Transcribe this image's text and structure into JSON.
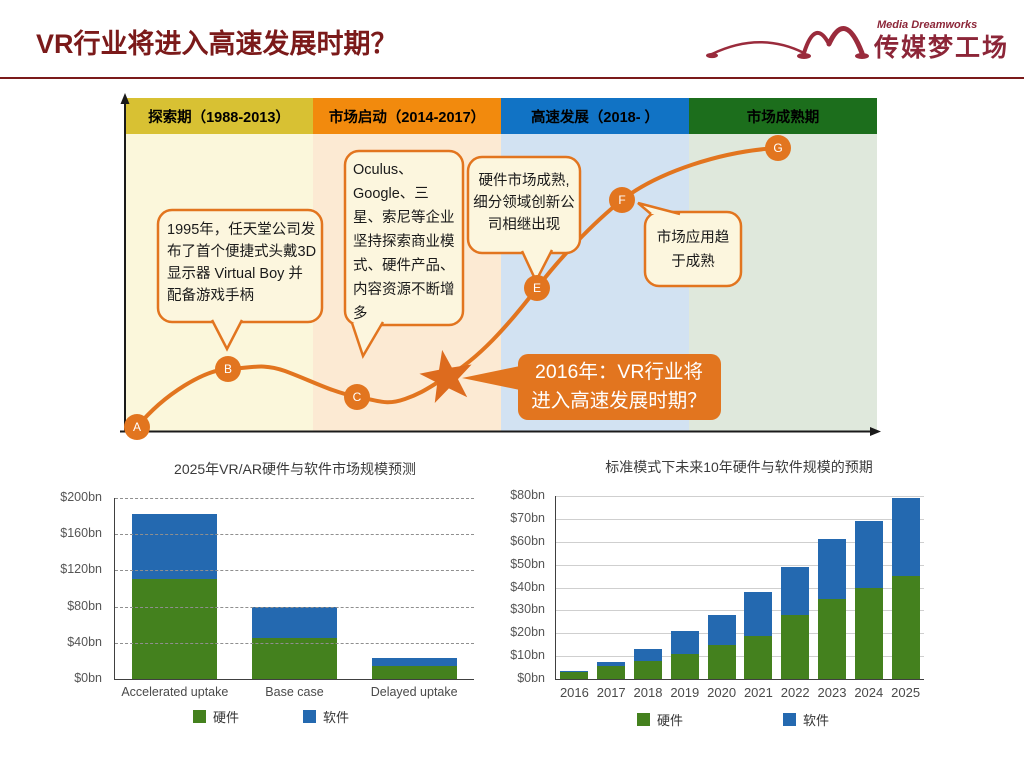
{
  "header": {
    "title": "VR行业将进入高速发展时期？",
    "accent_color": "#7B1A1A",
    "logo": {
      "name": "传媒梦工场",
      "subname": "Media Dreamworks",
      "color": "#8C2638"
    }
  },
  "timeline": {
    "curve_color": "#E2751F",
    "phases": [
      {
        "label": "探索期（1988-2013）",
        "header_color": "#D8C133",
        "column_color": "#FBF7DB"
      },
      {
        "label": "市场启动（2014-2017）",
        "header_color": "#F28A0D",
        "column_color": "#FCEAD3"
      },
      {
        "label": "高速发展（2018- ）",
        "header_color": "#1173C5",
        "column_color": "#D2E2F2"
      },
      {
        "label": "市场成熟期",
        "header_color": "#1C6E1C",
        "column_color": "#DFE8DC"
      }
    ],
    "points": [
      {
        "label": "A"
      },
      {
        "label": "B"
      },
      {
        "label": "C"
      },
      {
        "label": "E"
      },
      {
        "label": "F"
      },
      {
        "label": "G"
      }
    ],
    "callouts": [
      {
        "text": "1995年，任天堂公司发布了首个便捷式头戴3D显示器 Virtual Boy 并配备游戏手柄"
      },
      {
        "text": "Oculus、Google、三星、索尼等企业坚持探索商业模式、硬件产品、内容资源不断增多"
      },
      {
        "text": "硬件市场成熟,细分领域创新公司相继出现"
      },
      {
        "text": "市场应用趋于成熟"
      }
    ],
    "highlight": {
      "line1": "2016年：VR行业将",
      "line2": "进入高速发展时期？"
    }
  },
  "chart_data": [
    {
      "type": "bar",
      "title": "2025年VR/AR硬件与软件市场规模预测",
      "categories": [
        "Accelerated uptake",
        "Base case",
        "Delayed uptake"
      ],
      "series": [
        {
          "name": "硬件",
          "key": "hardware",
          "color": "#44811E",
          "values": [
            110,
            45,
            14
          ]
        },
        {
          "name": "软件",
          "key": "software",
          "color": "#2469B0",
          "values": [
            72,
            35,
            9
          ]
        }
      ],
      "yticks": [
        "$0bn",
        "$40bn",
        "$80bn",
        "$120bn",
        "$160bn",
        "$200bn"
      ],
      "ymax": 200,
      "ytick_step": 40,
      "grid": "dashed",
      "legend_position": "bottom"
    },
    {
      "type": "bar",
      "title": "标准模式下未来10年硬件与软件规模的预期",
      "categories": [
        "2016",
        "2017",
        "2018",
        "2019",
        "2020",
        "2021",
        "2022",
        "2023",
        "2024",
        "2025"
      ],
      "series": [
        {
          "name": "硬件",
          "key": "hardware",
          "color": "#44811E",
          "values": [
            3,
            5.5,
            8,
            11,
            15,
            19,
            28,
            35,
            40,
            45
          ]
        },
        {
          "name": "软件",
          "key": "software",
          "color": "#2469B0",
          "values": [
            0.5,
            2,
            5,
            10,
            13,
            19,
            21,
            26,
            29,
            34
          ]
        }
      ],
      "yticks": [
        "$0bn",
        "$10bn",
        "$20bn",
        "$30bn",
        "$40bn",
        "$50bn",
        "$60bn",
        "$70bn",
        "$80bn"
      ],
      "ymax": 80,
      "ytick_step": 10,
      "grid": "solid",
      "legend_position": "bottom"
    }
  ]
}
